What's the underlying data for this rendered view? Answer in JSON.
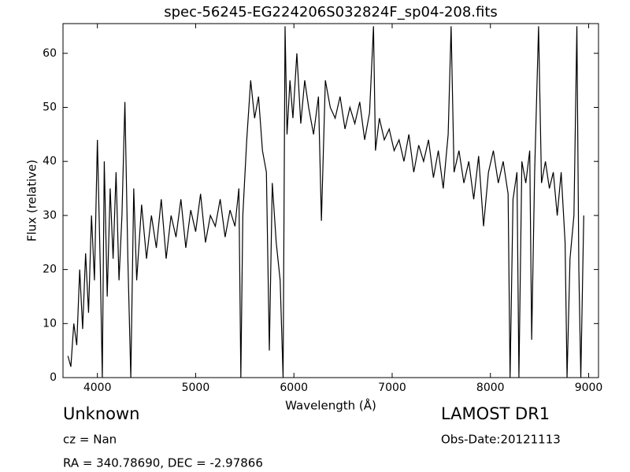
{
  "chart_data": {
    "type": "line",
    "title": "spec-56245-EG224206S032824F_sp04-208.fits",
    "x_label": "Wavelength (Å)",
    "y_label": "Flux (relative)",
    "annotations": {
      "object_class": "Unknown",
      "cz": "cz = Nan",
      "coordinates": "RA = 340.78690, DEC = -2.97866",
      "survey": "LAMOST DR1",
      "obs_date": "Obs-Date:20121113"
    },
    "xlim": [
      3650,
      9100
    ],
    "ylim": [
      0,
      65.5
    ],
    "xticks": [
      4000,
      5000,
      6000,
      7000,
      8000,
      9000
    ],
    "yticks": [
      0,
      10,
      20,
      30,
      40,
      50,
      60
    ],
    "color": "#000000",
    "x": [
      3700,
      3730,
      3760,
      3790,
      3820,
      3850,
      3880,
      3910,
      3940,
      3970,
      4000,
      4030,
      4050,
      4070,
      4100,
      4130,
      4160,
      4190,
      4220,
      4250,
      4280,
      4310,
      4340,
      4370,
      4400,
      4450,
      4500,
      4550,
      4600,
      4650,
      4700,
      4750,
      4800,
      4850,
      4900,
      4950,
      5000,
      5050,
      5100,
      5150,
      5200,
      5250,
      5300,
      5350,
      5400,
      5440,
      5460,
      5480,
      5520,
      5560,
      5600,
      5640,
      5680,
      5720,
      5750,
      5780,
      5820,
      5860,
      5890,
      5910,
      5930,
      5960,
      5990,
      6030,
      6070,
      6110,
      6150,
      6200,
      6250,
      6280,
      6320,
      6370,
      6420,
      6470,
      6520,
      6570,
      6620,
      6670,
      6720,
      6770,
      6810,
      6830,
      6870,
      6920,
      6970,
      7020,
      7070,
      7120,
      7170,
      7220,
      7270,
      7320,
      7370,
      7420,
      7470,
      7520,
      7570,
      7600,
      7630,
      7680,
      7730,
      7780,
      7830,
      7880,
      7930,
      7980,
      8030,
      8080,
      8130,
      8180,
      8200,
      8230,
      8270,
      8290,
      8320,
      8360,
      8400,
      8420,
      8450,
      8490,
      8520,
      8560,
      8600,
      8640,
      8680,
      8720,
      8760,
      8780,
      8810,
      8850,
      8880,
      8900,
      8920,
      8950
    ],
    "values": [
      4,
      2,
      10,
      6,
      20,
      9,
      23,
      12,
      30,
      18,
      44,
      20,
      0,
      40,
      15,
      35,
      22,
      38,
      18,
      30,
      51,
      22,
      0,
      35,
      18,
      32,
      22,
      30,
      24,
      33,
      22,
      30,
      26,
      33,
      24,
      31,
      27,
      34,
      25,
      30,
      28,
      33,
      26,
      31,
      28,
      35,
      0,
      30,
      44,
      55,
      48,
      52,
      42,
      38,
      5,
      36,
      25,
      18,
      0,
      65,
      45,
      55,
      48,
      60,
      47,
      55,
      50,
      45,
      52,
      29,
      55,
      50,
      48,
      52,
      46,
      50,
      47,
      51,
      44,
      49,
      65,
      42,
      48,
      44,
      46,
      42,
      44,
      40,
      45,
      38,
      43,
      40,
      44,
      37,
      42,
      35,
      45,
      65,
      38,
      42,
      36,
      40,
      33,
      41,
      28,
      38,
      42,
      36,
      40,
      34,
      0,
      33,
      38,
      0,
      40,
      36,
      42,
      7,
      38,
      65,
      36,
      40,
      35,
      38,
      30,
      38,
      25,
      0,
      22,
      30,
      65,
      20,
      0,
      30
    ]
  }
}
